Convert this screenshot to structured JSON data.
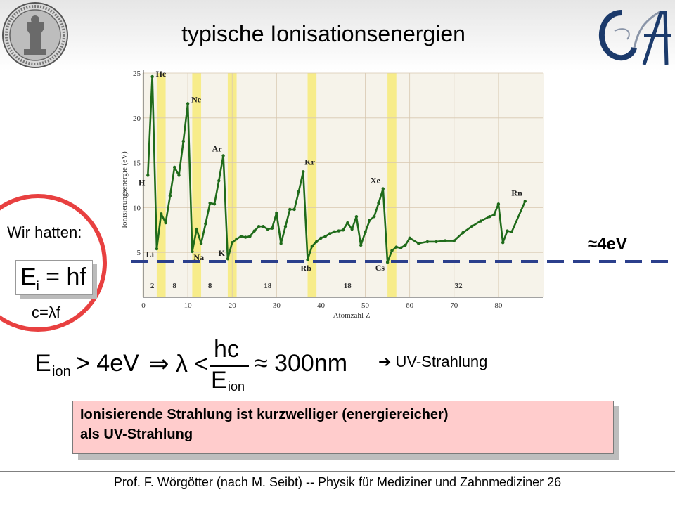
{
  "title": "typische Ionisationsenergien",
  "left_box": {
    "wir_hatten": "Wir hatten:",
    "formula_ei": "E",
    "formula_ei_sub": "i",
    "formula_rhs": "= hf",
    "c_lambda_f": "c=λf"
  },
  "threshold_label": "≈4eV",
  "formula": {
    "e": "E",
    "ion": "ion",
    "gt": "> 4eV",
    "implies": "⇒ λ <",
    "numerator": "hc",
    "denominator_e": "E",
    "denominator_sub": "ion",
    "approx": "≈ 300nm"
  },
  "uv_text": "➔ UV-Strahlung",
  "statement": {
    "line1": "Ionisierende Strahlung ist kurzwelliger (energiereicher)",
    "line2": "als UV-Strahlung"
  },
  "footer": "Prof. F. Wörgötter (nach M. Seibt) -- Physik für Mediziner und Zahnmediziner 26",
  "colors": {
    "line": "#1f6b1a",
    "shade": "#f7ec8a",
    "dashed": "#2b3f8c",
    "circle": "#e84040",
    "box": "#ffcccc"
  },
  "chart_data": {
    "type": "line",
    "xlabel": "Atomzahl Z",
    "ylabel": "Ionisierungsenergie (eV)",
    "xlim": [
      0,
      90
    ],
    "ylim": [
      0,
      25
    ],
    "x_ticks": [
      0,
      10,
      20,
      30,
      40,
      50,
      60,
      70,
      80
    ],
    "y_ticks": [
      5,
      10,
      15,
      20,
      25
    ],
    "shaded_bands": [
      [
        3,
        5
      ],
      [
        11,
        13
      ],
      [
        19,
        21
      ],
      [
        37,
        39
      ],
      [
        55,
        57
      ]
    ],
    "x": [
      1,
      2,
      3,
      4,
      5,
      6,
      7,
      8,
      9,
      10,
      11,
      12,
      13,
      14,
      15,
      16,
      17,
      18,
      19,
      20,
      21,
      22,
      23,
      24,
      25,
      26,
      27,
      28,
      29,
      30,
      31,
      32,
      33,
      34,
      35,
      36,
      37,
      38,
      39,
      40,
      41,
      42,
      43,
      44,
      45,
      46,
      47,
      48,
      49,
      50,
      51,
      52,
      53,
      54,
      55,
      56,
      57,
      58,
      59,
      60,
      62,
      64,
      66,
      68,
      70,
      72,
      74,
      76,
      78,
      79,
      80,
      81,
      82,
      83,
      86
    ],
    "y": [
      13.6,
      24.6,
      5.4,
      9.3,
      8.3,
      11.3,
      14.5,
      13.6,
      17.4,
      21.6,
      5.1,
      7.6,
      6.0,
      8.2,
      10.5,
      10.4,
      13.0,
      15.8,
      4.3,
      6.1,
      6.5,
      6.8,
      6.7,
      6.8,
      7.4,
      7.9,
      7.9,
      7.6,
      7.7,
      9.4,
      6.0,
      7.9,
      9.8,
      9.8,
      11.8,
      14.0,
      4.2,
      5.7,
      6.2,
      6.6,
      6.8,
      7.1,
      7.3,
      7.4,
      7.5,
      8.3,
      7.6,
      9.0,
      5.8,
      7.3,
      8.6,
      9.0,
      10.5,
      12.1,
      3.9,
      5.2,
      5.6,
      5.5,
      5.8,
      6.6,
      6.0,
      6.2,
      6.2,
      6.3,
      6.3,
      7.2,
      7.9,
      8.5,
      9.0,
      9.2,
      10.4,
      6.1,
      7.4,
      7.3,
      10.7
    ],
    "element_labels": [
      {
        "label": "H",
        "z": 1,
        "e": 13.6
      },
      {
        "label": "He",
        "z": 2,
        "e": 24.6
      },
      {
        "label": "Li",
        "z": 3,
        "e": 5.4
      },
      {
        "label": "Ne",
        "z": 10,
        "e": 21.6
      },
      {
        "label": "Na",
        "z": 11,
        "e": 5.1
      },
      {
        "label": "Ar",
        "z": 18,
        "e": 15.8
      },
      {
        "label": "K",
        "z": 19,
        "e": 4.3
      },
      {
        "label": "Kr",
        "z": 36,
        "e": 14.0
      },
      {
        "label": "Rb",
        "z": 37,
        "e": 4.2
      },
      {
        "label": "Xe",
        "z": 54,
        "e": 12.1
      },
      {
        "label": "Cs",
        "z": 55,
        "e": 3.9
      },
      {
        "label": "Rn",
        "z": 86,
        "e": 10.7
      }
    ],
    "period_counts": [
      {
        "label": "2",
        "z": 2
      },
      {
        "label": "8",
        "z": 7
      },
      {
        "label": "8",
        "z": 15
      },
      {
        "label": "18",
        "z": 28
      },
      {
        "label": "18",
        "z": 46
      },
      {
        "label": "32",
        "z": 71
      }
    ],
    "threshold_ev": 4
  }
}
